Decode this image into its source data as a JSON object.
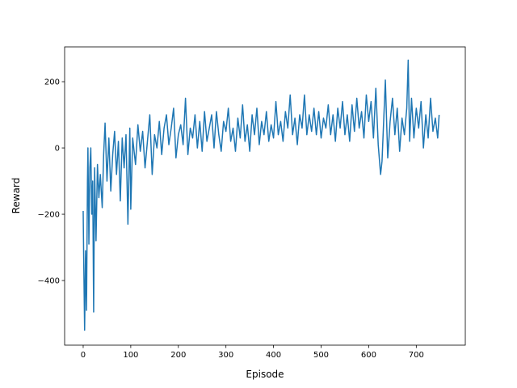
{
  "chart_data": {
    "type": "line",
    "x_label": "Episode",
    "y_label": "Reward",
    "xlim": [
      -39,
      803
    ],
    "ylim": [
      -595,
      305
    ],
    "xticks": [
      0,
      100,
      200,
      300,
      400,
      500,
      600,
      700
    ],
    "yticks": [
      {
        "value": -400,
        "label": "−400"
      },
      {
        "value": -200,
        "label": "−200"
      },
      0,
      200
    ],
    "series": [
      {
        "color": "#1f77b4",
        "x": [
          0,
          1,
          3,
          5,
          7,
          9,
          10,
          12,
          14,
          16,
          18,
          20,
          22,
          24,
          27,
          30,
          33,
          36,
          40,
          43,
          46,
          50,
          54,
          58,
          62,
          66,
          70,
          74,
          78,
          82,
          86,
          90,
          94,
          98,
          100,
          104,
          110,
          115,
          120,
          125,
          130,
          135,
          140,
          145,
          150,
          155,
          160,
          165,
          170,
          175,
          180,
          185,
          190,
          195,
          200,
          205,
          210,
          215,
          220,
          225,
          230,
          235,
          240,
          245,
          250,
          255,
          260,
          265,
          270,
          275,
          280,
          285,
          290,
          295,
          300,
          305,
          310,
          315,
          320,
          325,
          330,
          335,
          340,
          345,
          350,
          355,
          360,
          365,
          370,
          375,
          380,
          385,
          390,
          395,
          400,
          405,
          410,
          415,
          420,
          425,
          430,
          435,
          440,
          445,
          450,
          455,
          460,
          465,
          470,
          475,
          480,
          485,
          490,
          495,
          500,
          505,
          510,
          515,
          520,
          525,
          530,
          535,
          540,
          545,
          550,
          555,
          560,
          565,
          570,
          575,
          580,
          585,
          590,
          595,
          600,
          605,
          610,
          615,
          620,
          625,
          628,
          632,
          635,
          640,
          645,
          650,
          655,
          660,
          665,
          670,
          675,
          680,
          683,
          686,
          690,
          695,
          700,
          705,
          710,
          715,
          720,
          725,
          730,
          735,
          740,
          745,
          748
        ],
        "values": [
          -190,
          -320,
          -550,
          -310,
          -490,
          -100,
          0,
          -290,
          -60,
          0,
          -200,
          -100,
          -495,
          -60,
          -280,
          -50,
          -150,
          -80,
          -180,
          -20,
          75,
          -100,
          30,
          -130,
          -20,
          50,
          -80,
          20,
          -160,
          30,
          -60,
          40,
          -230,
          60,
          -185,
          30,
          -50,
          70,
          -10,
          50,
          -60,
          20,
          100,
          -80,
          40,
          0,
          80,
          -20,
          60,
          100,
          10,
          60,
          120,
          -30,
          40,
          70,
          10,
          150,
          -20,
          60,
          30,
          100,
          0,
          80,
          -10,
          110,
          20,
          60,
          100,
          0,
          110,
          40,
          -10,
          80,
          50,
          120,
          20,
          60,
          -10,
          90,
          30,
          130,
          20,
          70,
          -10,
          100,
          40,
          120,
          10,
          80,
          40,
          110,
          20,
          70,
          30,
          140,
          40,
          80,
          20,
          110,
          60,
          160,
          40,
          90,
          10,
          100,
          60,
          160,
          40,
          100,
          50,
          120,
          40,
          110,
          30,
          90,
          60,
          130,
          40,
          100,
          20,
          120,
          60,
          140,
          40,
          100,
          20,
          130,
          50,
          150,
          60,
          110,
          30,
          160,
          80,
          140,
          30,
          180,
          10,
          -80,
          -40,
          100,
          205,
          -30,
          80,
          150,
          40,
          120,
          -10,
          90,
          40,
          120,
          265,
          20,
          150,
          30,
          120,
          60,
          140,
          0,
          100,
          30,
          150,
          50,
          90,
          30,
          100
        ]
      }
    ]
  }
}
